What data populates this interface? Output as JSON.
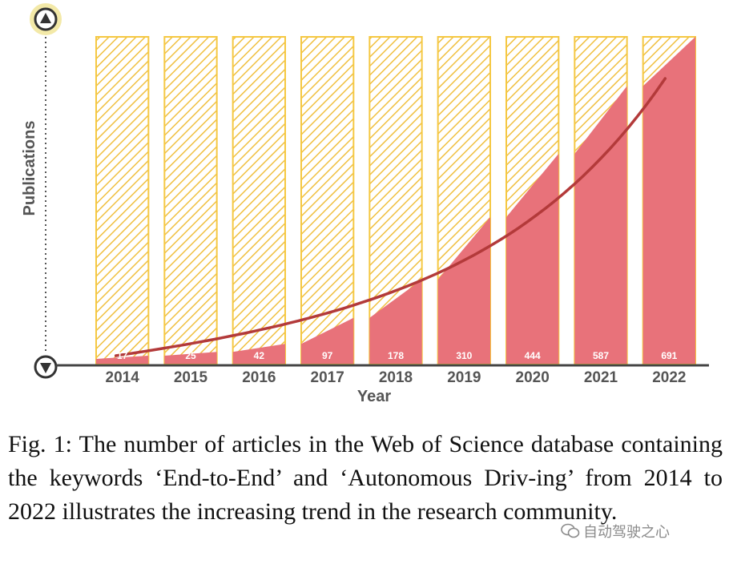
{
  "chart_data": {
    "type": "bar",
    "categories": [
      "2014",
      "2015",
      "2016",
      "2017",
      "2018",
      "2019",
      "2020",
      "2021",
      "2022"
    ],
    "values": [
      17,
      25,
      42,
      97,
      178,
      310,
      444,
      587,
      691
    ],
    "xlabel": "Year",
    "ylabel": "Publications",
    "ylim": [
      0,
      691
    ],
    "trend_line": true,
    "colors": {
      "bar_fill": "#E8727A",
      "background_bar": "#F5C842",
      "hatch": "#E9A92C",
      "trend": "#B33A3A",
      "axis": "#444444"
    }
  },
  "caption": "Fig. 1: The number of articles in the Web of Science database containing the keywords ‘End-to-End’ and ‘Autonomous Driv-ing’ from 2014 to 2022 illustrates the increasing trend in the research community.",
  "watermark": {
    "text": "自动驾驶之心",
    "icon": "wechat-icon"
  }
}
